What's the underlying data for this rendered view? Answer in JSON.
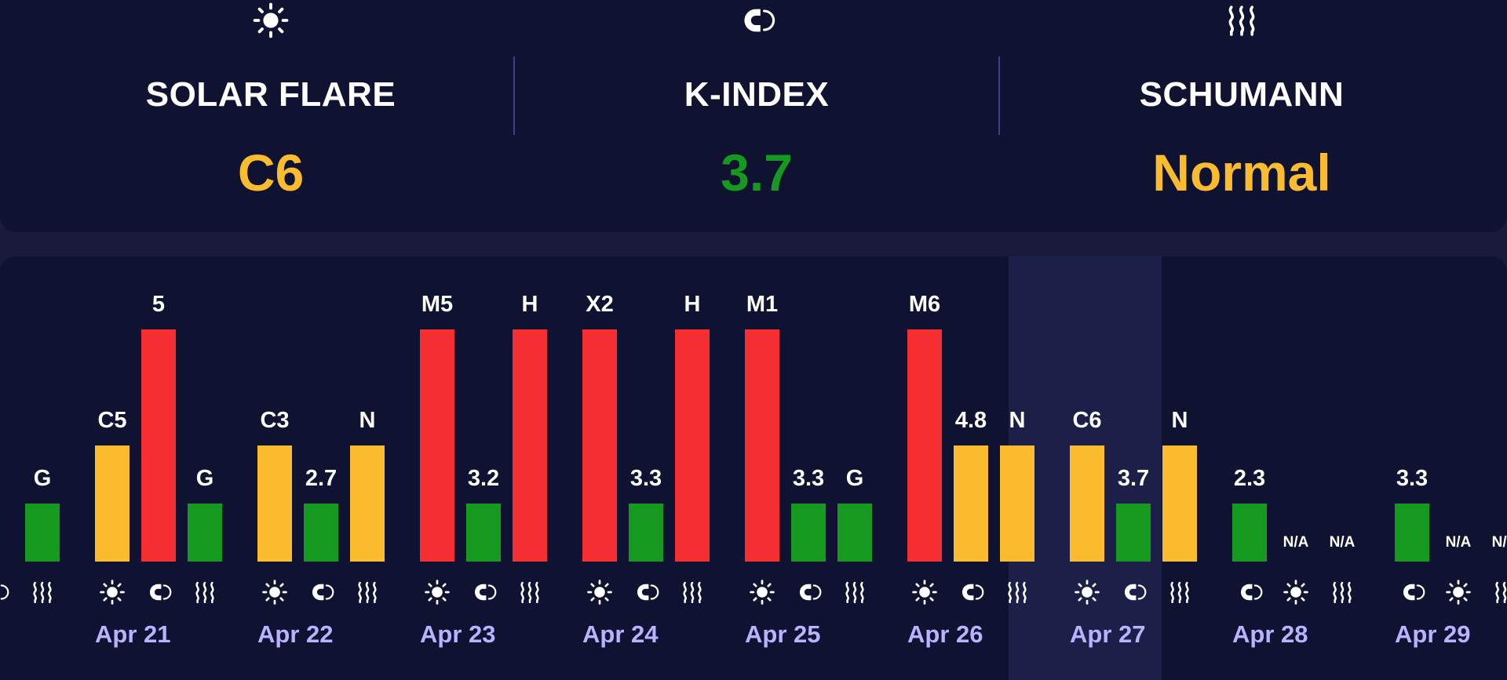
{
  "colors": {
    "yellow": "#fbbb2f",
    "green": "#159a1f",
    "red": "#f42e31",
    "white": "#ffffff",
    "accent": "#b9b3ff"
  },
  "summary": {
    "solar": {
      "icon": "sun-icon",
      "label": "SOLAR FLARE",
      "value": "C6",
      "color": "#fbbb2f"
    },
    "kindex": {
      "icon": "magnet-icon",
      "label": "K-INDEX",
      "value": "3.7",
      "color": "#159a1f"
    },
    "schumann": {
      "icon": "waves-icon",
      "label": "SCHUMANN",
      "value": "Normal",
      "color": "#fbbb2f"
    }
  },
  "days": [
    {
      "date": "",
      "today": false,
      "bars": [
        {
          "kind": "solar",
          "label": "",
          "level": 0,
          "color": "#159a1f"
        },
        {
          "kind": "kindex",
          "label": "",
          "level": 0,
          "color": "#159a1f"
        },
        {
          "kind": "schumann",
          "label": "G",
          "level": 0.25,
          "color": "#159a1f"
        }
      ]
    },
    {
      "date": "Apr 21",
      "today": false,
      "bars": [
        {
          "kind": "solar",
          "label": "C5",
          "level": 0.5,
          "color": "#fbbb2f"
        },
        {
          "kind": "kindex",
          "label": "5",
          "level": 1,
          "color": "#f42e31"
        },
        {
          "kind": "schumann",
          "label": "G",
          "level": 0.25,
          "color": "#159a1f"
        }
      ]
    },
    {
      "date": "Apr 22",
      "today": false,
      "bars": [
        {
          "kind": "solar",
          "label": "C3",
          "level": 0.5,
          "color": "#fbbb2f"
        },
        {
          "kind": "kindex",
          "label": "2.7",
          "level": 0.25,
          "color": "#159a1f"
        },
        {
          "kind": "schumann",
          "label": "N",
          "level": 0.5,
          "color": "#fbbb2f"
        }
      ]
    },
    {
      "date": "Apr 23",
      "today": false,
      "bars": [
        {
          "kind": "solar",
          "label": "M5",
          "level": 1,
          "color": "#f42e31"
        },
        {
          "kind": "kindex",
          "label": "3.2",
          "level": 0.25,
          "color": "#159a1f"
        },
        {
          "kind": "schumann",
          "label": "H",
          "level": 1,
          "color": "#f42e31"
        }
      ]
    },
    {
      "date": "Apr 24",
      "today": false,
      "bars": [
        {
          "kind": "solar",
          "label": "X2",
          "level": 1,
          "color": "#f42e31"
        },
        {
          "kind": "kindex",
          "label": "3.3",
          "level": 0.25,
          "color": "#159a1f"
        },
        {
          "kind": "schumann",
          "label": "H",
          "level": 1,
          "color": "#f42e31"
        }
      ]
    },
    {
      "date": "Apr 25",
      "today": false,
      "bars": [
        {
          "kind": "solar",
          "label": "M1",
          "level": 1,
          "color": "#f42e31"
        },
        {
          "kind": "kindex",
          "label": "3.3",
          "level": 0.25,
          "color": "#159a1f"
        },
        {
          "kind": "schumann",
          "label": "G",
          "level": 0.25,
          "color": "#159a1f"
        }
      ]
    },
    {
      "date": "Apr 26",
      "today": false,
      "bars": [
        {
          "kind": "solar",
          "label": "M6",
          "level": 1,
          "color": "#f42e31"
        },
        {
          "kind": "kindex",
          "label": "4.8",
          "level": 0.5,
          "color": "#fbbb2f"
        },
        {
          "kind": "schumann",
          "label": "N",
          "level": 0.5,
          "color": "#fbbb2f"
        }
      ]
    },
    {
      "date": "Apr 27",
      "today": true,
      "bars": [
        {
          "kind": "solar",
          "label": "C6",
          "level": 0.5,
          "color": "#fbbb2f"
        },
        {
          "kind": "kindex",
          "label": "3.7",
          "level": 0.25,
          "color": "#159a1f"
        },
        {
          "kind": "schumann",
          "label": "N",
          "level": 0.5,
          "color": "#fbbb2f"
        }
      ]
    },
    {
      "date": "Apr 28",
      "today": false,
      "bars": [
        {
          "kind": "kindex",
          "label": "2.3",
          "level": 0.25,
          "color": "#159a1f"
        },
        {
          "kind": "solar",
          "label": "N/A",
          "level": 0,
          "color": "#159a1f"
        },
        {
          "kind": "schumann",
          "label": "N/A",
          "level": 0,
          "color": "#159a1f"
        }
      ]
    },
    {
      "date": "Apr 29",
      "today": false,
      "bars": [
        {
          "kind": "kindex",
          "label": "3.3",
          "level": 0.25,
          "color": "#159a1f"
        },
        {
          "kind": "solar",
          "label": "N/A",
          "level": 0,
          "color": "#159a1f"
        },
        {
          "kind": "schumann",
          "label": "N/A",
          "level": 0,
          "color": "#159a1f"
        }
      ]
    }
  ]
}
